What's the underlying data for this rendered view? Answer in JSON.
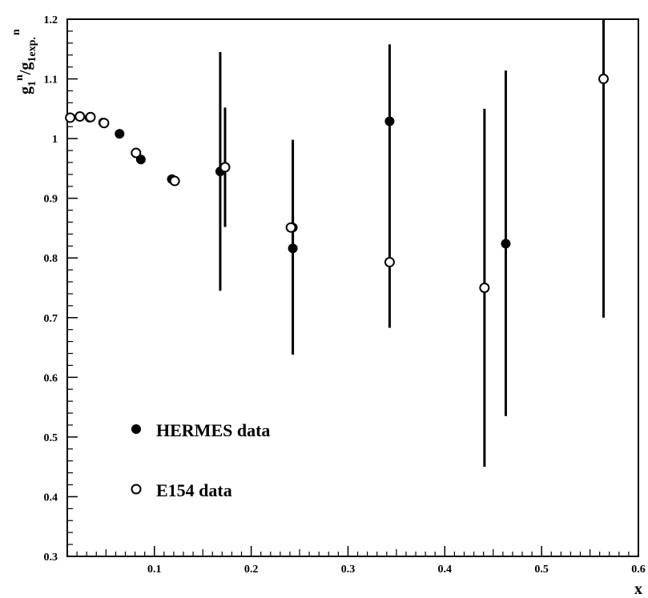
{
  "chart_data": {
    "type": "scatter",
    "title": "",
    "xlabel": "x",
    "ylabel": {
      "base1": "g",
      "sub1": "1",
      "sup1": "n",
      "slash": "/",
      "base2": "g",
      "sub2": "1exp.",
      "sup2": "n"
    },
    "xlim": [
      0.01,
      0.6
    ],
    "ylim": [
      0.3,
      1.2
    ],
    "x_ticks": [
      {
        "value": 0.1,
        "label": "0.1"
      },
      {
        "value": 0.2,
        "label": "0.2"
      },
      {
        "value": 0.3,
        "label": "0.3"
      },
      {
        "value": 0.4,
        "label": "0.4"
      },
      {
        "value": 0.5,
        "label": "0.5"
      },
      {
        "value": 0.6,
        "label": "0.6"
      }
    ],
    "y_ticks": [
      {
        "value": 0.3,
        "label": "0.3"
      },
      {
        "value": 0.4,
        "label": "0.4"
      },
      {
        "value": 0.5,
        "label": "0.5"
      },
      {
        "value": 0.6,
        "label": "0.6"
      },
      {
        "value": 0.7,
        "label": "0.7"
      },
      {
        "value": 0.8,
        "label": "0.8"
      },
      {
        "value": 0.9,
        "label": "0.9"
      },
      {
        "value": 1,
        "label": "1"
      },
      {
        "value": 1.1,
        "label": "1.1"
      },
      {
        "value": 1.2,
        "label": "1.2"
      }
    ],
    "grid": false,
    "legend_position": "lower-left",
    "series": [
      {
        "name": "HERMES data",
        "marker": "filled-circle",
        "color": "#000000",
        "points": [
          {
            "x": 0.033,
            "y": 1.035
          },
          {
            "x": 0.047,
            "y": 1.027
          },
          {
            "x": 0.064,
            "y": 1.008
          },
          {
            "x": 0.086,
            "y": 0.965
          },
          {
            "x": 0.118,
            "y": 0.932
          },
          {
            "x": 0.168,
            "y": 0.945,
            "ylo": 0.745,
            "yhi": 1.145
          },
          {
            "x": 0.243,
            "y": 0.816,
            "ylo": 0.638,
            "yhi": 0.998
          },
          {
            "x": 0.243,
            "y": 0.851,
            "ylo": 0.83,
            "yhi": 0.872
          },
          {
            "x": 0.343,
            "y": 1.029,
            "ylo": 0.683,
            "yhi": 1.158
          },
          {
            "x": 0.463,
            "y": 0.824,
            "ylo": 0.535,
            "yhi": 1.114
          }
        ]
      },
      {
        "name": "E154 data",
        "marker": "open-circle",
        "color": "#000000",
        "points": [
          {
            "x": 0.013,
            "y": 1.035
          },
          {
            "x": 0.023,
            "y": 1.037
          },
          {
            "x": 0.034,
            "y": 1.036
          },
          {
            "x": 0.048,
            "y": 1.026
          },
          {
            "x": 0.081,
            "y": 0.976
          },
          {
            "x": 0.121,
            "y": 0.929
          },
          {
            "x": 0.173,
            "y": 0.952,
            "ylo": 0.852,
            "yhi": 1.052
          },
          {
            "x": 0.241,
            "y": 0.851
          },
          {
            "x": 0.343,
            "y": 0.793
          },
          {
            "x": 0.441,
            "y": 0.75,
            "ylo": 0.45,
            "yhi": 1.05
          },
          {
            "x": 0.564,
            "y": 1.1,
            "ylo": 0.7,
            "yhi": 1.2
          }
        ]
      }
    ]
  }
}
